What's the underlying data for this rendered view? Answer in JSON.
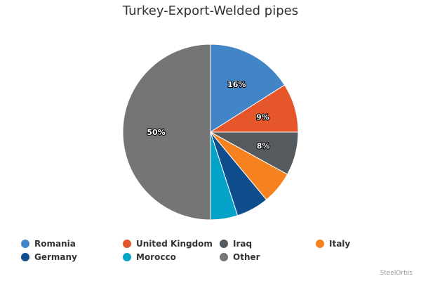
{
  "chart_data": {
    "type": "pie",
    "title": "Turkey-Export-Welded pipes",
    "slices": [
      {
        "name": "Romania",
        "value": 16,
        "label": "16%",
        "color": "#4285c6"
      },
      {
        "name": "United Kingdom",
        "value": 9,
        "label": "9%",
        "color": "#e5572a"
      },
      {
        "name": "Iraq",
        "value": 8,
        "label": "8%",
        "color": "#555a5f"
      },
      {
        "name": "Italy",
        "value": 6,
        "label": "",
        "color": "#f5821f"
      },
      {
        "name": "Germany",
        "value": 6,
        "label": "",
        "color": "#0f4d8c"
      },
      {
        "name": "Morocco",
        "value": 5,
        "label": "",
        "color": "#05a3c8"
      },
      {
        "name": "Other",
        "value": 50,
        "label": "50%",
        "color": "#757575"
      }
    ],
    "legend_position": "bottom"
  },
  "credit": "SteelOrbis"
}
